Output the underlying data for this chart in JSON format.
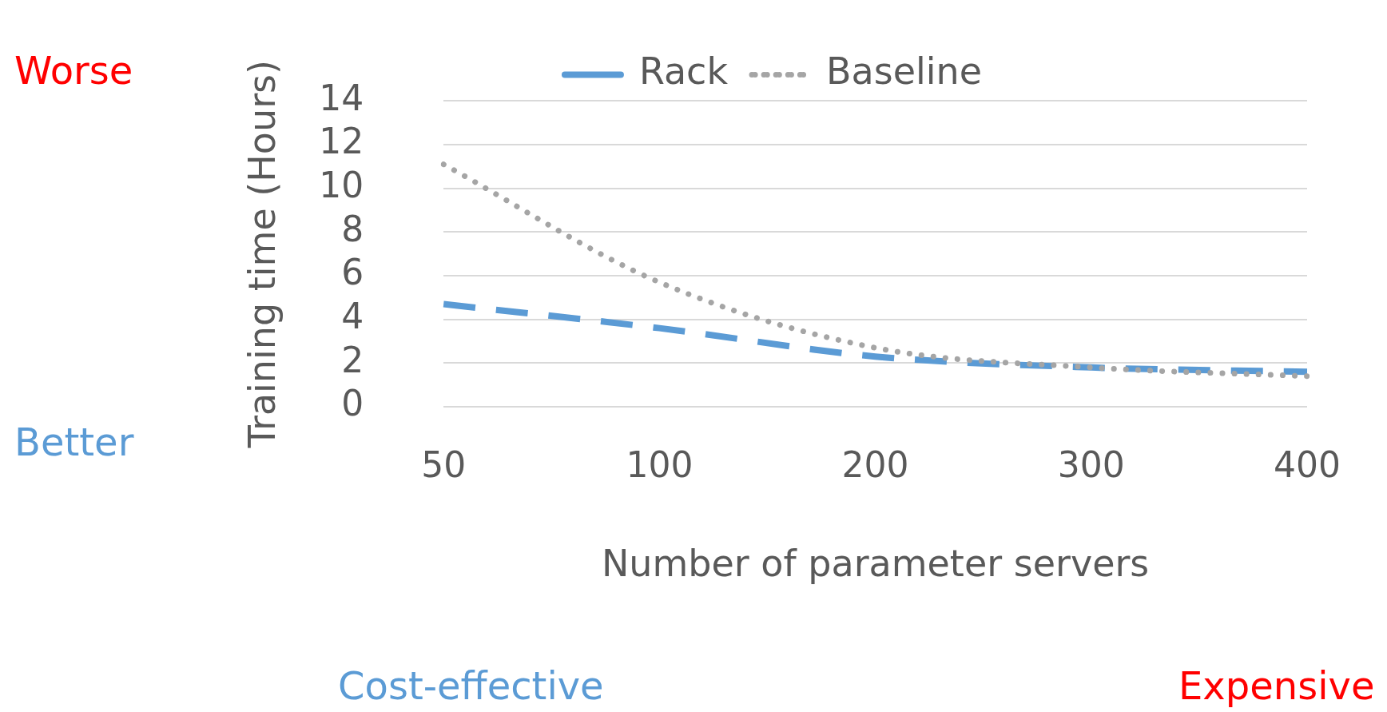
{
  "chart_data": {
    "type": "line",
    "xlabel": "Number of parameter servers",
    "ylabel": "Training time (Hours)",
    "categories": [
      "50",
      "100",
      "200",
      "300",
      "400"
    ],
    "series": [
      {
        "name": "Rack",
        "color": "#5b9bd5",
        "line_style": "dashed",
        "values": [
          4.7,
          3.6,
          2.3,
          1.8,
          1.6
        ]
      },
      {
        "name": "Baseline",
        "color": "#a5a5a5",
        "line_style": "dotted",
        "values": [
          11.1,
          5.7,
          2.7,
          1.8,
          1.4
        ]
      }
    ],
    "ylim": [
      0,
      14
    ],
    "yticks": [
      0,
      2,
      4,
      6,
      8,
      10,
      12,
      14
    ],
    "grid": "y",
    "legend": "top",
    "marker": "none",
    "annotations": [
      "Worse",
      "Better",
      "Cost-effective",
      "Expensive"
    ]
  }
}
